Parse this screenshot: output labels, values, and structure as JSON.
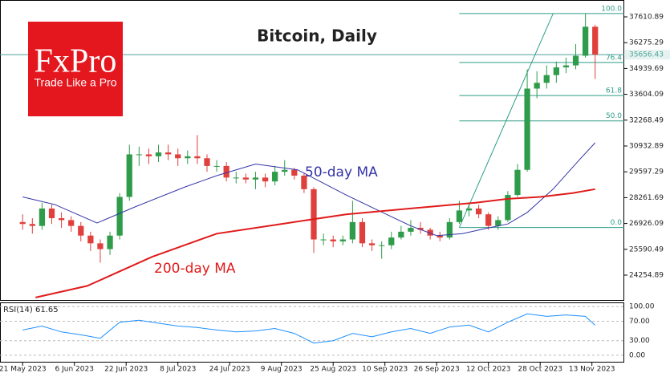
{
  "logo": {
    "name": "FxPro",
    "tagline": "Trade Like a Pro"
  },
  "chart_data": {
    "type": "candlestick",
    "title": "Bitcoin, Daily",
    "up_color": "#2e9c4a",
    "down_color": "#e0403c",
    "x": [
      "2023-05-21",
      "2023-05-24",
      "2023-05-27",
      "2023-05-30",
      "2023-06-02",
      "2023-06-05",
      "2023-06-08",
      "2023-06-11",
      "2023-06-14",
      "2023-06-17",
      "2023-06-20",
      "2023-06-23",
      "2023-06-26",
      "2023-06-29",
      "2023-07-02",
      "2023-07-05",
      "2023-07-08",
      "2023-07-11",
      "2023-07-14",
      "2023-07-17",
      "2023-07-20",
      "2023-07-23",
      "2023-07-26",
      "2023-07-29",
      "2023-08-01",
      "2023-08-04",
      "2023-08-07",
      "2023-08-10",
      "2023-08-13",
      "2023-08-16",
      "2023-08-19",
      "2023-08-22",
      "2023-08-25",
      "2023-08-28",
      "2023-08-31",
      "2023-09-03",
      "2023-09-06",
      "2023-09-09",
      "2023-09-12",
      "2023-09-15",
      "2023-09-18",
      "2023-09-21",
      "2023-09-24",
      "2023-09-27",
      "2023-09-30",
      "2023-10-03",
      "2023-10-06",
      "2023-10-09",
      "2023-10-12",
      "2023-10-15",
      "2023-10-18",
      "2023-10-21",
      "2023-10-24",
      "2023-10-27",
      "2023-10-30",
      "2023-11-02",
      "2023-11-05",
      "2023-11-08",
      "2023-11-11",
      "2023-11-14"
    ],
    "open": [
      27000,
      26900,
      26800,
      27700,
      27200,
      27100,
      26800,
      26300,
      25900,
      25600,
      26300,
      28300,
      30500,
      30500,
      30400,
      30600,
      30500,
      30300,
      30400,
      30300,
      29900,
      29900,
      29300,
      29300,
      29200,
      29300,
      29100,
      29600,
      29700,
      29400,
      28700,
      26100,
      26100,
      26000,
      26100,
      27000,
      25900,
      25800,
      25800,
      26200,
      26500,
      26700,
      26600,
      26300,
      26200,
      27000,
      27600,
      27700,
      27400,
      26800,
      27100,
      28400,
      29700,
      33900,
      34200,
      34600,
      35000,
      35100,
      35600,
      37100
    ],
    "high": [
      27400,
      27200,
      28000,
      27900,
      27500,
      27300,
      27000,
      26500,
      26100,
      26500,
      28500,
      31000,
      30900,
      30800,
      31000,
      31000,
      30800,
      30700,
      31500,
      30500,
      30200,
      30100,
      29600,
      29500,
      29600,
      29500,
      29900,
      30200,
      29800,
      29500,
      28800,
      26400,
      26300,
      26300,
      28100,
      27200,
      26100,
      26000,
      26500,
      26800,
      27100,
      27000,
      26700,
      26500,
      27200,
      28100,
      28000,
      27900,
      27500,
      27300,
      28600,
      30000,
      34900,
      34800,
      35100,
      35300,
      35500,
      36200,
      37800,
      37200
    ],
    "low": [
      26600,
      26400,
      26600,
      26900,
      26700,
      26500,
      26000,
      25500,
      24900,
      25300,
      26100,
      28100,
      29900,
      30000,
      30100,
      30200,
      29900,
      30000,
      30000,
      29600,
      29600,
      29100,
      29000,
      29000,
      28700,
      28800,
      28900,
      29400,
      29200,
      28500,
      25400,
      25800,
      25700,
      25800,
      25900,
      25700,
      25500,
      25100,
      25600,
      26100,
      26300,
      26400,
      26100,
      26000,
      26100,
      26900,
      27300,
      27200,
      26600,
      26600,
      27000,
      28300,
      29600,
      33400,
      33900,
      34200,
      34700,
      34900,
      35500,
      34400
    ],
    "close": [
      26900,
      26800,
      27700,
      27200,
      27100,
      26800,
      26300,
      25900,
      25600,
      26300,
      28300,
      30500,
      30500,
      30400,
      30600,
      30500,
      30300,
      30400,
      30300,
      29900,
      29900,
      29300,
      29300,
      29200,
      29300,
      29100,
      29600,
      29700,
      29400,
      28700,
      26100,
      26100,
      26000,
      26100,
      27000,
      25900,
      25800,
      25800,
      26200,
      26500,
      26700,
      26600,
      26300,
      26200,
      27000,
      27600,
      27700,
      27400,
      26800,
      27100,
      28400,
      29700,
      33900,
      34200,
      34600,
      35000,
      35100,
      35600,
      37100,
      35656.43
    ],
    "xlim": [
      "2023-05-14",
      "2023-11-23"
    ],
    "xticks": [
      {
        "value": "2023-05-21",
        "label": "21 May 2023"
      },
      {
        "value": "2023-06-06",
        "label": "6 Jun 2023"
      },
      {
        "value": "2023-06-22",
        "label": "22 Jun 2023"
      },
      {
        "value": "2023-07-08",
        "label": "8 Jul 2023"
      },
      {
        "value": "2023-07-24",
        "label": "24 Jul 2023"
      },
      {
        "value": "2023-08-09",
        "label": "9 Aug 2023"
      },
      {
        "value": "2023-08-25",
        "label": "25 Aug 2023"
      },
      {
        "value": "2023-09-10",
        "label": "10 Sep 2023"
      },
      {
        "value": "2023-09-26",
        "label": "26 Sep 2023"
      },
      {
        "value": "2023-10-12",
        "label": "12 Oct 2023"
      },
      {
        "value": "2023-10-28",
        "label": "28 Oct 2023"
      },
      {
        "value": "2023-11-13",
        "label": "13 Nov 2023"
      }
    ],
    "ylim": [
      22928,
      38482
    ],
    "yticks": [
      37610.89,
      36275.29,
      34939.69,
      33604.09,
      32268.49,
      30932.89,
      29597.29,
      28261.69,
      26926.09,
      25590.49,
      24254.89
    ],
    "lines": [
      {
        "label": "50-day MA",
        "color": "#3434a8",
        "x": [
          "2023-05-21",
          "2023-05-31",
          "2023-06-13",
          "2023-06-25",
          "2023-07-10",
          "2023-07-20",
          "2023-08-01",
          "2023-08-14",
          "2023-08-29",
          "2023-09-08",
          "2023-09-18",
          "2023-09-26",
          "2023-10-04",
          "2023-10-12",
          "2023-10-18",
          "2023-10-24",
          "2023-11-01",
          "2023-11-09",
          "2023-11-14"
        ],
        "values": [
          28300,
          27900,
          26950,
          27800,
          28800,
          29400,
          30000,
          29700,
          28400,
          27600,
          26800,
          26300,
          26400,
          26700,
          26900,
          27500,
          28700,
          30200,
          31100
        ]
      },
      {
        "label": "200-day MA",
        "color": "#e01b1b",
        "x": [
          "2023-05-25",
          "2023-06-10",
          "2023-06-30",
          "2023-07-20",
          "2023-08-09",
          "2023-08-29",
          "2023-09-18",
          "2023-10-08",
          "2023-10-18",
          "2023-10-28",
          "2023-11-07",
          "2023-11-14"
        ],
        "values": [
          23100,
          23700,
          25200,
          26400,
          26900,
          27400,
          27700,
          28000,
          28200,
          28300,
          28500,
          28700
        ]
      }
    ],
    "fibonacci": {
      "color": "#2e9c86",
      "start": "2023-10-03",
      "levels": [
        {
          "label": "100.0",
          "price": 37780
        },
        {
          "label": "76.4",
          "price": 35250
        },
        {
          "label": "61.8",
          "price": 33540
        },
        {
          "label": "50.0",
          "price": 32230
        },
        {
          "label": "0.0",
          "price": 26720
        }
      ],
      "trendline": {
        "x": [
          "2023-10-03",
          "2023-11-01"
        ],
        "values": [
          26720,
          37780
        ]
      }
    },
    "rsi": {
      "label": "RSI(14) 61.65",
      "color": "#1e90ff",
      "x": [
        "2023-05-21",
        "2023-05-27",
        "2023-06-02",
        "2023-06-08",
        "2023-06-14",
        "2023-06-20",
        "2023-06-26",
        "2023-07-02",
        "2023-07-08",
        "2023-07-14",
        "2023-07-20",
        "2023-07-26",
        "2023-08-01",
        "2023-08-07",
        "2023-08-13",
        "2023-08-19",
        "2023-08-25",
        "2023-08-31",
        "2023-09-06",
        "2023-09-12",
        "2023-09-18",
        "2023-09-24",
        "2023-09-30",
        "2023-10-06",
        "2023-10-12",
        "2023-10-18",
        "2023-10-24",
        "2023-10-30",
        "2023-11-05",
        "2023-11-11",
        "2023-11-14"
      ],
      "values": [
        52,
        60,
        48,
        42,
        35,
        68,
        72,
        66,
        60,
        57,
        52,
        48,
        50,
        55,
        45,
        25,
        30,
        45,
        38,
        48,
        55,
        45,
        58,
        62,
        48,
        68,
        85,
        80,
        83,
        80,
        61.65
      ],
      "ylim": [
        -15,
        107
      ],
      "yticks": [
        {
          "value": 100,
          "label": "100.00"
        },
        {
          "value": 70,
          "label": "70.00"
        },
        {
          "value": 30,
          "label": "30.00"
        },
        {
          "value": 0,
          "label": "0.00"
        }
      ]
    }
  }
}
